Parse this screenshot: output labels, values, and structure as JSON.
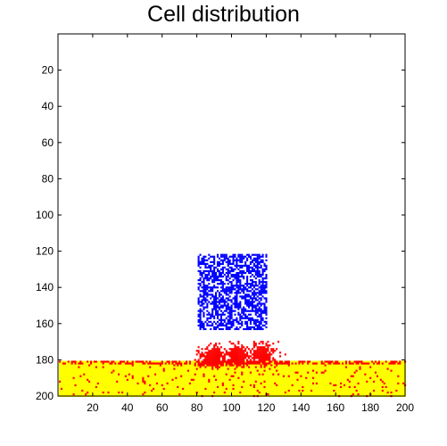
{
  "chart_data": {
    "type": "heatmap",
    "title": "Cell distribution",
    "xlabel": "",
    "ylabel": "",
    "xlim": [
      1,
      200
    ],
    "ylim": [
      1,
      200
    ],
    "y_reversed": true,
    "x_ticks": [
      20,
      40,
      60,
      80,
      100,
      120,
      140,
      160,
      180,
      200
    ],
    "y_ticks": [
      20,
      40,
      60,
      80,
      100,
      120,
      140,
      160,
      180,
      200
    ],
    "background_color": "#ffffff",
    "regions": [
      {
        "name": "",
        "color": "#ffff00",
        "x_range": [
          1,
          200
        ],
        "y_range": [
          181,
          200
        ],
        "fill": "solid"
      },
      {
        "name": "",
        "color": "#0000ff",
        "x_range": [
          81,
          120
        ],
        "y_range": [
          122,
          163
        ],
        "fill": "scattered",
        "density": 0.6
      },
      {
        "name": "",
        "color": "#ff0000",
        "x_range": [
          78,
          133
        ],
        "y_range": [
          170,
          185
        ],
        "fill": "clusters"
      },
      {
        "name": "",
        "color": "#ff0000",
        "x_range": [
          1,
          200
        ],
        "y_range": [
          181,
          200
        ],
        "fill": "sparse",
        "density": 0.05
      }
    ]
  }
}
